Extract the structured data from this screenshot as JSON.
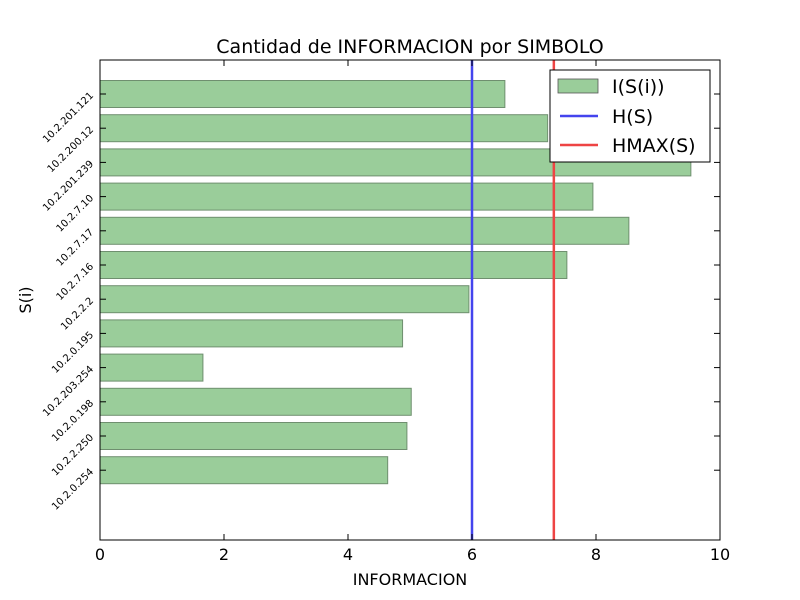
{
  "chart_data": {
    "type": "bar",
    "orientation": "horizontal",
    "title": "Cantidad de INFORMACION por SIMBOLO",
    "xlabel": "INFORMACION",
    "ylabel": "S(i)",
    "xlim": [
      0,
      10
    ],
    "xticks": [
      "0",
      "2",
      "4",
      "6",
      "8",
      "10"
    ],
    "grid": false,
    "legend_position": "top-right",
    "categories": [
      "10.2.201.121",
      "10.2.200.12",
      "10.2.201.239",
      "10.2.7.10",
      "10.2.7.17",
      "10.2.7.16",
      "10.2.2.2",
      "10.2.0.195",
      "10.2.203.254",
      "10.2.0.198",
      "10.2.2.250",
      "10.2.0.254"
    ],
    "series": [
      {
        "name": "I(S(i))",
        "color": "#9acd9a",
        "values": [
          6.53,
          7.22,
          9.53,
          7.95,
          8.53,
          7.53,
          5.95,
          4.88,
          1.66,
          5.02,
          4.95,
          4.64
        ]
      }
    ],
    "reference_lines": [
      {
        "name": "H(S)",
        "value": 6.0,
        "color": "#4444ee"
      },
      {
        "name": "HMAX(S)",
        "value": 7.32,
        "color": "#ee4444"
      }
    ]
  }
}
